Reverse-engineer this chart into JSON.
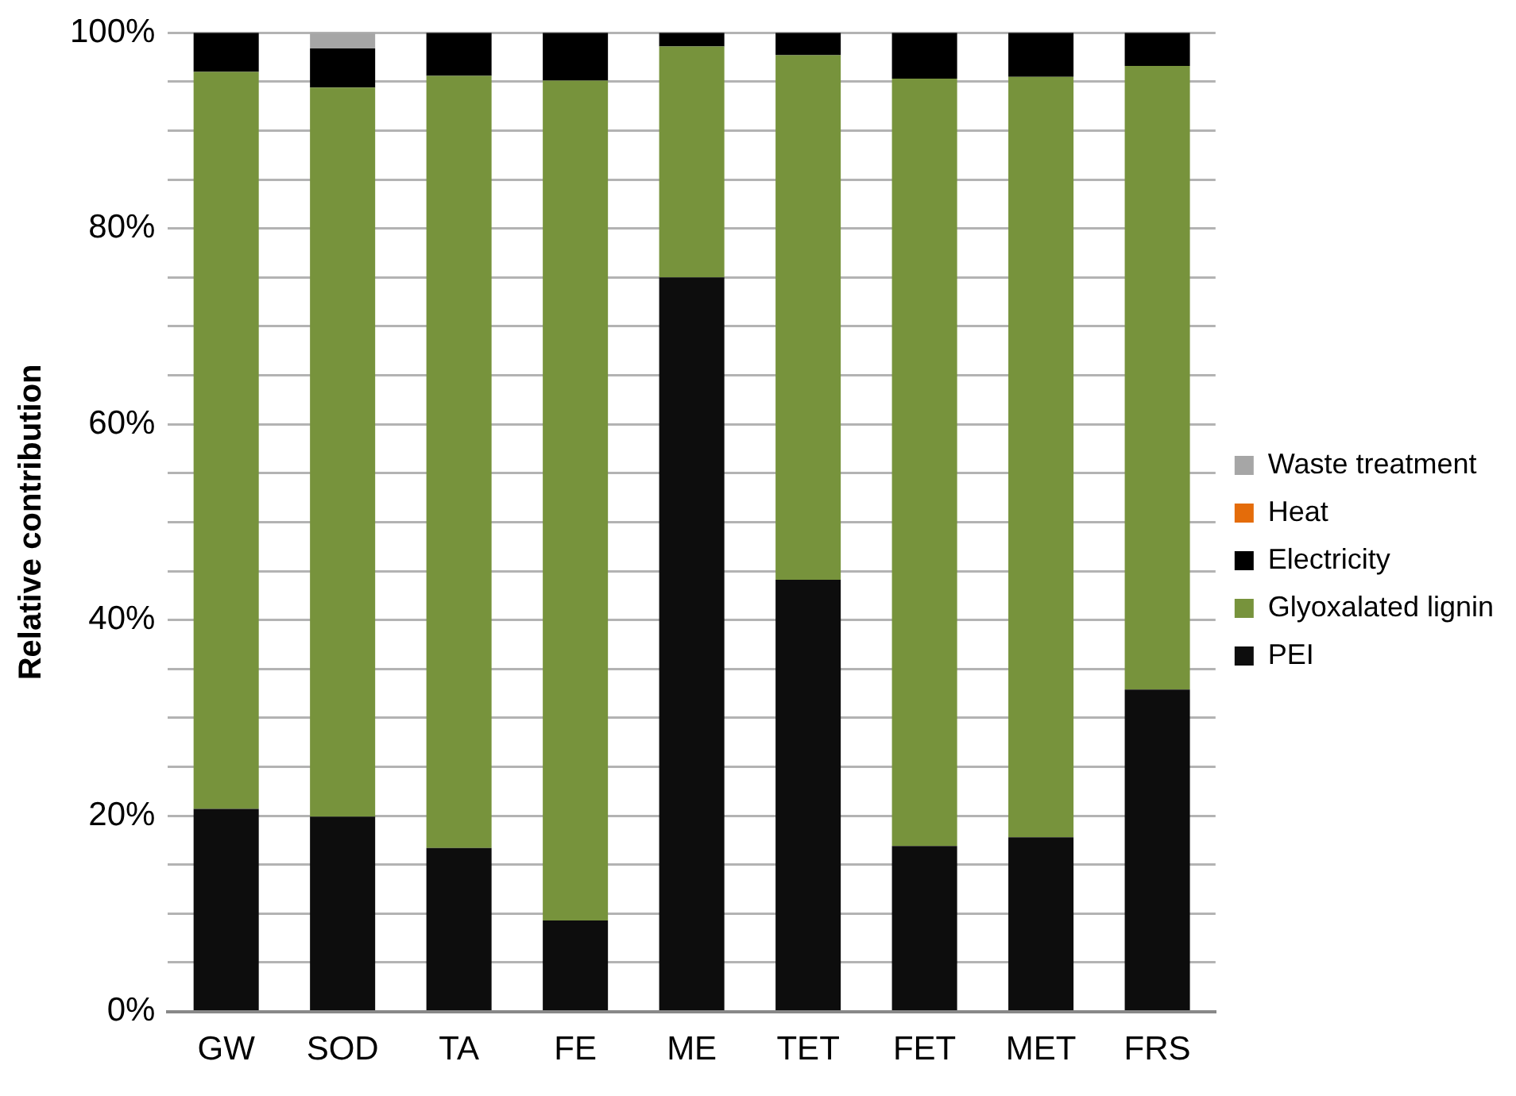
{
  "chart_data": {
    "type": "bar",
    "stacked": true,
    "ylabel": "Relative contribution",
    "categories": [
      "GW",
      "SOD",
      "TA",
      "FE",
      "ME",
      "TET",
      "FET",
      "MET",
      "FRS"
    ],
    "series": [
      {
        "name": "PEI",
        "color": "#0d0d0d",
        "values": [
          20.7,
          19.9,
          16.7,
          9.3,
          75,
          44.1,
          16.9,
          17.8,
          32.9
        ]
      },
      {
        "name": "Glyoxalated lignin",
        "color": "#77933c",
        "values": [
          75.3,
          74.5,
          78.9,
          85.8,
          23.6,
          53.6,
          78.4,
          77.7,
          63.7
        ]
      },
      {
        "name": "Electricity",
        "color": "#000000",
        "values": [
          4.0,
          4.0,
          4.4,
          4.9,
          1.4,
          2.3,
          4.7,
          4.5,
          3.4
        ]
      },
      {
        "name": "Heat",
        "color": "#e46c0a",
        "values": [
          0,
          0,
          0,
          0,
          0,
          0,
          0,
          0,
          0
        ]
      },
      {
        "name": "Waste treatment",
        "color": "#a6a6a6",
        "values": [
          0,
          1.6,
          0,
          0,
          0,
          0,
          0,
          0,
          0
        ]
      }
    ],
    "ylim": [
      0,
      100
    ],
    "yticks": [
      {
        "value": 0,
        "label": "0%"
      },
      {
        "value": 5,
        "label": null
      },
      {
        "value": 10,
        "label": null
      },
      {
        "value": 15,
        "label": null
      },
      {
        "value": 20,
        "label": "20%"
      },
      {
        "value": 25,
        "label": null
      },
      {
        "value": 30,
        "label": null
      },
      {
        "value": 35,
        "label": null
      },
      {
        "value": 40,
        "label": "40%"
      },
      {
        "value": 45,
        "label": null
      },
      {
        "value": 50,
        "label": null
      },
      {
        "value": 55,
        "label": null
      },
      {
        "value": 60,
        "label": "60%"
      },
      {
        "value": 65,
        "label": null
      },
      {
        "value": 70,
        "label": null
      },
      {
        "value": 75,
        "label": null
      },
      {
        "value": 80,
        "label": "80%"
      },
      {
        "value": 85,
        "label": null
      },
      {
        "value": 90,
        "label": null
      },
      {
        "value": 95,
        "label": null
      },
      {
        "value": 100,
        "label": "100%"
      }
    ],
    "grid": "y",
    "legend": "right"
  }
}
